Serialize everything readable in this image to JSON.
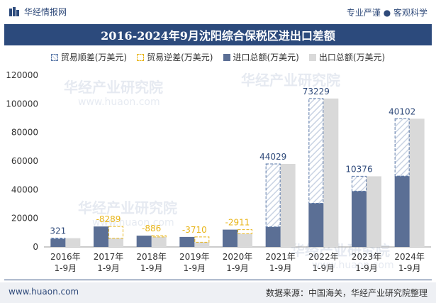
{
  "header": {
    "brand": "华经情报网",
    "slogan": "专业严谨 ● 客观科学"
  },
  "title": "2016-2024年9月沈阳综合保税区进出口差额",
  "legend": {
    "surplus": "贸易顺差(万美元)",
    "deficit": "贸易逆差(万美元)",
    "import": "进口总额(万美元)",
    "export": "出口总额(万美元)"
  },
  "footer": {
    "website": "www.huaon.com",
    "source": "数据来源：中国海关，华经产业研究院整理"
  },
  "watermark": {
    "text": "华经产业研究院",
    "url": "www.huaon.com"
  },
  "colors": {
    "import": "#5b6f95",
    "export": "#d9d9d9",
    "surplus_border": "#5a78a8",
    "deficit_border": "#e8b417",
    "surplus_label": "#2f4a7a",
    "deficit_label": "#e8b417"
  },
  "chart_data": {
    "type": "bar",
    "categories": [
      "2016年\n1-9月",
      "2017年\n1-9月",
      "2018年\n1-9月",
      "2019年\n1-9月",
      "2020年\n1-9月",
      "2021年\n1-9月",
      "2022年\n1-9月",
      "2023年\n1-9月",
      "2024年\n1-9月"
    ],
    "series": [
      {
        "name": "进口总额(万美元)",
        "values": [
          5800,
          14300,
          7900,
          7000,
          12100,
          14000,
          30500,
          39000,
          49500
        ]
      },
      {
        "name": "出口总额(万美元)",
        "values": [
          6121,
          6011,
          7014,
          3290,
          9189,
          58029,
          103729,
          49376,
          89602
        ]
      }
    ],
    "balance": [
      321,
      -8289,
      -886,
      -3710,
      -2911,
      44029,
      73229,
      10376,
      40102
    ],
    "balance_labels": [
      "321",
      "-8289",
      "-886",
      "-3710",
      "-2911",
      "44029",
      "73229",
      "10376",
      "40102"
    ],
    "ylim": [
      0,
      120000
    ],
    "yticks": [
      0,
      20000,
      40000,
      60000,
      80000,
      100000,
      120000
    ],
    "ytick_labels": [
      "0",
      "20000",
      "40000",
      "60000",
      "80000",
      "100000",
      "120000"
    ]
  }
}
